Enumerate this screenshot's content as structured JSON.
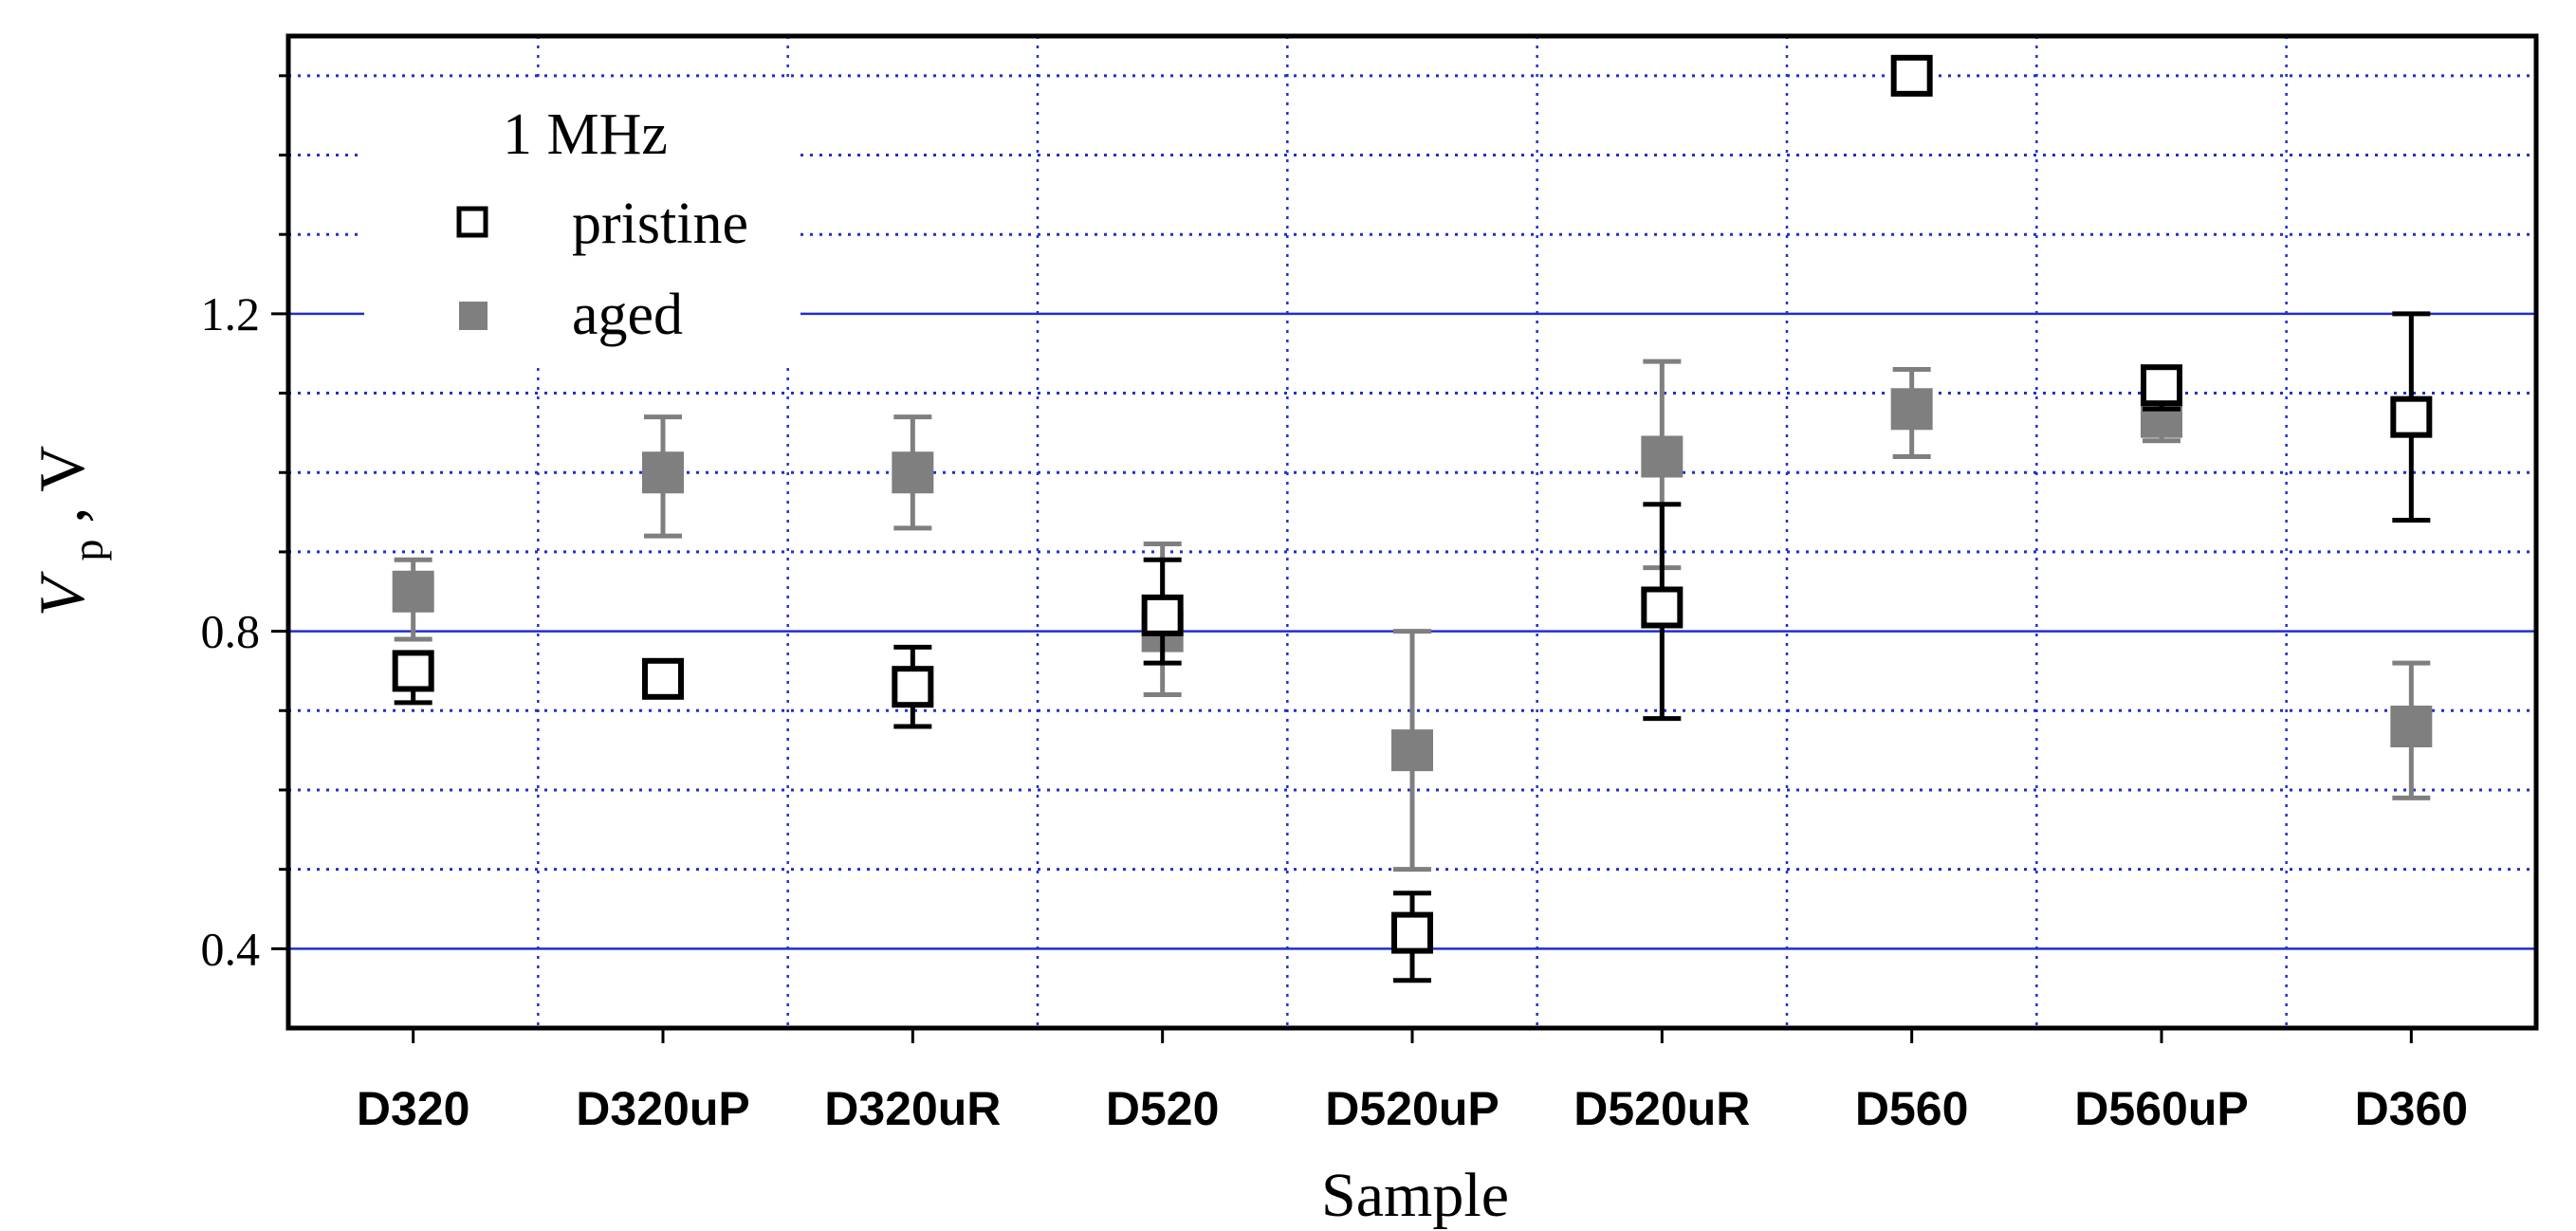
{
  "chart_data": {
    "type": "scatter",
    "xlabel": "Sample",
    "ylabel": {
      "symbol": "V",
      "subscript": "p",
      "unit": ", V"
    },
    "categories": [
      "D320",
      "D320uP",
      "D320uR",
      "D520",
      "D520uP",
      "D520uR",
      "D560",
      "D560uP",
      "D360"
    ],
    "ylim": [
      0.3,
      1.55
    ],
    "yticks": [
      0.4,
      0.8,
      1.2
    ],
    "ytick_labels": [
      "0.4",
      "0.8",
      "1.2"
    ],
    "grid": true,
    "legend": {
      "title": "1 MHz",
      "placement": "top-left"
    },
    "series": [
      {
        "name": "pristine",
        "marker": "open-square",
        "color": "#000000",
        "values": [
          0.75,
          0.74,
          0.73,
          0.82,
          0.42,
          0.83,
          1.5,
          1.11,
          1.07
        ],
        "error_low": [
          0.71,
          0.72,
          0.68,
          0.76,
          0.36,
          0.69,
          null,
          1.08,
          0.94
        ],
        "error_high": [
          0.77,
          0.75,
          0.78,
          0.89,
          0.47,
          0.96,
          null,
          1.13,
          1.2
        ]
      },
      {
        "name": "aged",
        "marker": "filled-square",
        "color": "#7f7f7f",
        "values": [
          0.85,
          1.0,
          1.0,
          0.8,
          0.65,
          1.02,
          1.08,
          1.07,
          0.68
        ],
        "error_low": [
          0.79,
          0.92,
          0.93,
          0.72,
          0.5,
          0.88,
          1.02,
          1.04,
          0.59
        ],
        "error_high": [
          0.89,
          1.07,
          1.07,
          0.91,
          0.8,
          1.14,
          1.13,
          1.1,
          0.76
        ]
      }
    ]
  }
}
